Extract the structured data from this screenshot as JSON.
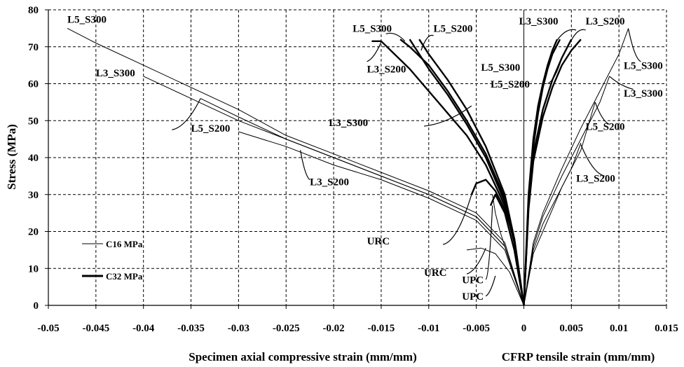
{
  "chart_data": {
    "type": "line",
    "xlabel": "Specimen axial compressive strain (mm/mm)",
    "xlabel_right": "CFRP tensile strain (mm/mm)",
    "ylabel": "Stress (MPa)",
    "xlim": [
      -0.05,
      0.015
    ],
    "ylim": [
      0,
      80
    ],
    "x_ticks": [
      -0.05,
      -0.045,
      -0.04,
      -0.035,
      -0.03,
      -0.025,
      -0.02,
      -0.015,
      -0.01,
      -0.005,
      0,
      0.005,
      0.01,
      0.015
    ],
    "x_tick_labels": [
      "-0.05",
      "-0.045",
      "-0.04",
      "-0.035",
      "-0.03",
      "-0.025",
      "-0.02",
      "-0.015",
      "-0.01",
      "-0.005",
      "0",
      "0.005",
      "0.01",
      "0.015"
    ],
    "y_ticks": [
      0,
      10,
      20,
      30,
      40,
      50,
      60,
      70,
      80
    ],
    "y_tick_labels": [
      "0",
      "10",
      "20",
      "30",
      "40",
      "50",
      "60",
      "70",
      "80"
    ],
    "grid": true,
    "legend": {
      "placement": "left",
      "entries": [
        {
          "label": "C16 MPa",
          "style": "thin"
        },
        {
          "label": "C32 MPa",
          "style": "thick"
        }
      ]
    },
    "series": [
      {
        "name": "L5_S300",
        "group": "C16",
        "side": "axial",
        "x": [
          0,
          -0.002,
          -0.005,
          -0.01,
          -0.015,
          -0.02,
          -0.025,
          -0.03,
          -0.035,
          -0.04,
          -0.045,
          -0.048
        ],
        "y": [
          0,
          17,
          25,
          31,
          36,
          41,
          46,
          53,
          59,
          65,
          71,
          75
        ]
      },
      {
        "name": "L3_S300",
        "group": "C16",
        "side": "axial",
        "x": [
          0,
          -0.002,
          -0.005,
          -0.01,
          -0.015,
          -0.02,
          -0.025,
          -0.03,
          -0.035,
          -0.04
        ],
        "y": [
          0,
          16,
          24,
          30,
          35,
          40,
          45,
          50,
          56,
          62
        ]
      },
      {
        "name": "L5_S200",
        "group": "C16",
        "side": "axial",
        "x": [
          0,
          -0.002,
          -0.005,
          -0.01,
          -0.015,
          -0.02,
          -0.025,
          -0.03,
          -0.034
        ],
        "y": [
          0,
          16,
          24,
          30,
          35,
          40,
          45,
          51,
          56
        ]
      },
      {
        "name": "L3_S200",
        "group": "C16",
        "side": "axial",
        "x": [
          0,
          -0.002,
          -0.005,
          -0.01,
          -0.015,
          -0.02,
          -0.025,
          -0.03
        ],
        "y": [
          0,
          15,
          23,
          29,
          34,
          38,
          43,
          47
        ]
      },
      {
        "name": "URC",
        "group": "C16",
        "side": "axial",
        "x": [
          0,
          -0.0015,
          -0.003,
          -0.0045,
          -0.006
        ],
        "y": [
          0,
          9,
          14,
          15.5,
          15
        ]
      },
      {
        "name": "UPC",
        "group": "C16",
        "side": "axial",
        "x": [
          0,
          -0.0015,
          -0.0025,
          -0.003,
          -0.0033
        ],
        "y": [
          0,
          12,
          20,
          25,
          30
        ]
      },
      {
        "name": "URC",
        "group": "C32",
        "side": "axial",
        "x": [
          0,
          -0.001,
          -0.002,
          -0.003,
          -0.004,
          -0.005,
          -0.0055
        ],
        "y": [
          0,
          18,
          26,
          31,
          34,
          33,
          30
        ]
      },
      {
        "name": "UPC",
        "group": "C32",
        "side": "axial",
        "x": [
          0,
          -0.001,
          -0.002,
          -0.003,
          -0.0035
        ],
        "y": [
          0,
          15,
          25,
          30,
          27
        ]
      },
      {
        "name": "L5_S300",
        "group": "C32",
        "side": "axial",
        "x": [
          0,
          -0.001,
          -0.002,
          -0.004,
          -0.006,
          -0.008,
          -0.01,
          -0.012,
          -0.013
        ],
        "y": [
          0,
          18,
          29,
          41,
          50,
          58,
          65,
          70,
          72
        ]
      },
      {
        "name": "L5_S200",
        "group": "C32",
        "side": "axial",
        "x": [
          0,
          -0.001,
          -0.002,
          -0.004,
          -0.006,
          -0.008,
          -0.01,
          -0.011
        ],
        "y": [
          0,
          18,
          30,
          43,
          53,
          61,
          68,
          72
        ]
      },
      {
        "name": "L3_S200",
        "group": "C32",
        "side": "axial",
        "x": [
          0,
          -0.001,
          -0.002,
          -0.004,
          -0.006,
          -0.009,
          -0.012,
          -0.015,
          -0.016
        ],
        "y": [
          0,
          17,
          27,
          38,
          46,
          55,
          64,
          71.5,
          71.5
        ]
      },
      {
        "name": "L3_S300",
        "group": "C32",
        "side": "axial",
        "x": [
          0,
          -0.001,
          -0.002,
          -0.004,
          -0.006,
          -0.008,
          -0.01,
          -0.012
        ],
        "y": [
          0,
          17,
          28,
          40,
          49,
          57,
          64,
          72
        ]
      },
      {
        "name": "L3_S300",
        "group": "C32",
        "side": "hoop",
        "x": [
          0,
          0.0005,
          0.001,
          0.0015,
          0.002,
          0.0025,
          0.003,
          0.0035
        ],
        "y": [
          0,
          30,
          45,
          54,
          60,
          65,
          69,
          72
        ]
      },
      {
        "name": "L5_S300",
        "group": "C32",
        "side": "hoop",
        "x": [
          0,
          0.0005,
          0.001,
          0.0015,
          0.002,
          0.0025,
          0.003,
          0.0038
        ],
        "y": [
          0,
          28,
          43,
          52,
          59,
          64,
          68,
          72
        ]
      },
      {
        "name": "L5_S200",
        "group": "C32",
        "side": "hoop",
        "x": [
          0,
          0.0005,
          0.001,
          0.002,
          0.003,
          0.004,
          0.005
        ],
        "y": [
          0,
          27,
          41,
          53,
          61,
          67,
          72
        ]
      },
      {
        "name": "L3_S200",
        "group": "C32",
        "side": "hoop",
        "x": [
          0,
          0.0005,
          0.001,
          0.002,
          0.003,
          0.004,
          0.005,
          0.006
        ],
        "y": [
          0,
          26,
          39,
          51,
          59,
          65,
          69,
          72
        ]
      },
      {
        "name": "L5_S300",
        "group": "C16",
        "side": "hoop",
        "x": [
          0,
          0.001,
          0.002,
          0.004,
          0.006,
          0.008,
          0.01,
          0.011
        ],
        "y": [
          0,
          17,
          25,
          37,
          48,
          58,
          68,
          75
        ]
      },
      {
        "name": "L3_S300",
        "group": "C16",
        "side": "hoop",
        "x": [
          0,
          0.001,
          0.002,
          0.004,
          0.006,
          0.008,
          0.009
        ],
        "y": [
          0,
          16,
          24,
          35,
          45,
          55,
          62
        ]
      },
      {
        "name": "L5_S200",
        "group": "C16",
        "side": "hoop",
        "x": [
          0,
          0.001,
          0.002,
          0.004,
          0.006,
          0.0075
        ],
        "y": [
          0,
          15,
          22,
          32,
          42,
          55
        ]
      },
      {
        "name": "L3_S200",
        "group": "C16",
        "side": "hoop",
        "x": [
          0,
          0.001,
          0.002,
          0.003,
          0.004,
          0.005,
          0.006
        ],
        "y": [
          0,
          14,
          20,
          26,
          32,
          37,
          44
        ]
      }
    ],
    "annotations": [
      {
        "text": "L5_S300",
        "x": -0.048,
        "y": 76.5
      },
      {
        "text": "L3_S300",
        "x": -0.045,
        "y": 62
      },
      {
        "text": "L5_S200",
        "x": -0.035,
        "y": 47
      },
      {
        "text": "L3_S200",
        "x": -0.0225,
        "y": 32.5
      },
      {
        "text": "L5_S300",
        "x": -0.018,
        "y": 74
      },
      {
        "text": "L5_S200",
        "x": -0.0095,
        "y": 74
      },
      {
        "text": "L3_S200",
        "x": -0.0165,
        "y": 63
      },
      {
        "text": "L3_S300",
        "x": -0.0205,
        "y": 48.5
      },
      {
        "text": "L3_S300",
        "x": -0.0005,
        "y": 76
      },
      {
        "text": "L3_S200",
        "x": 0.0065,
        "y": 76
      },
      {
        "text": "L5_S300",
        "x": -0.0045,
        "y": 63.5
      },
      {
        "text": "L5_S200",
        "x": -0.0035,
        "y": 59
      },
      {
        "text": "L5_S300",
        "x": 0.0105,
        "y": 64
      },
      {
        "text": "L3_S300",
        "x": 0.0105,
        "y": 56.5
      },
      {
        "text": "L5_S200",
        "x": 0.0065,
        "y": 47.5
      },
      {
        "text": "L3_S200",
        "x": 0.0055,
        "y": 33.5
      },
      {
        "text": "URC",
        "x": -0.0165,
        "y": 16.5
      },
      {
        "text": "URC",
        "x": -0.0105,
        "y": 8
      },
      {
        "text": "UPC",
        "x": -0.0065,
        "y": 6
      },
      {
        "text": "UPC",
        "x": -0.0065,
        "y": 1.5
      }
    ]
  }
}
